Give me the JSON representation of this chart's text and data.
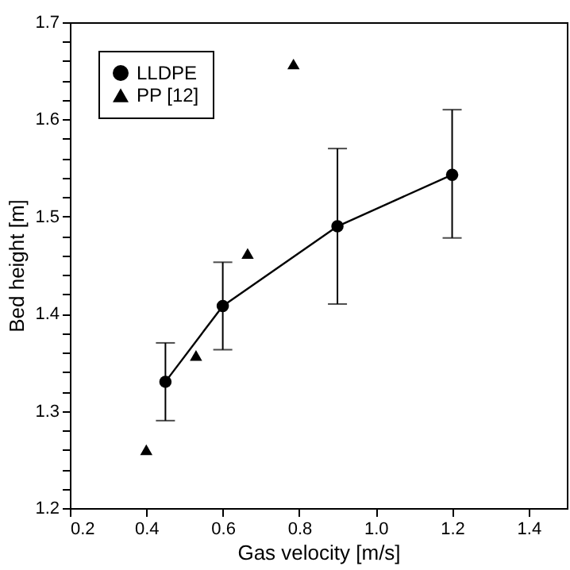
{
  "chart_data": {
    "type": "line",
    "xlabel": "Gas velocity [m/s]",
    "ylabel": "Bed height [m]",
    "xlim": [
      0.2,
      1.5
    ],
    "xticks": [
      {
        "value": 0.2,
        "label": "0.2"
      },
      {
        "value": 0.4,
        "label": "0.4"
      },
      {
        "value": 0.6,
        "label": "0.6"
      },
      {
        "value": 0.8,
        "label": "0.8"
      },
      {
        "value": 1.0,
        "label": "1.0"
      },
      {
        "value": 1.2,
        "label": "1.2"
      },
      {
        "value": 1.4,
        "label": "1.4"
      }
    ],
    "ylim": [
      1.2,
      1.7
    ],
    "yticks": [
      {
        "value": 1.2,
        "label": "1.2"
      },
      {
        "value": 1.22,
        "label": null
      },
      {
        "value": 1.24,
        "label": null
      },
      {
        "value": 1.26,
        "label": null
      },
      {
        "value": 1.28,
        "label": null
      },
      {
        "value": 1.3,
        "label": "1.3"
      },
      {
        "value": 1.32,
        "label": null
      },
      {
        "value": 1.34,
        "label": null
      },
      {
        "value": 1.36,
        "label": null
      },
      {
        "value": 1.38,
        "label": null
      },
      {
        "value": 1.4,
        "label": "1.4"
      },
      {
        "value": 1.42,
        "label": null
      },
      {
        "value": 1.44,
        "label": null
      },
      {
        "value": 1.46,
        "label": null
      },
      {
        "value": 1.48,
        "label": null
      },
      {
        "value": 1.5,
        "label": "1.5"
      },
      {
        "value": 1.52,
        "label": null
      },
      {
        "value": 1.54,
        "label": null
      },
      {
        "value": 1.56,
        "label": null
      },
      {
        "value": 1.58,
        "label": null
      },
      {
        "value": 1.6,
        "label": "1.6"
      },
      {
        "value": 1.62,
        "label": null
      },
      {
        "value": 1.64,
        "label": null
      },
      {
        "value": 1.66,
        "label": null
      },
      {
        "value": 1.68,
        "label": null
      },
      {
        "value": 1.7,
        "label": "1.7"
      }
    ],
    "grid": false,
    "legend": "top left",
    "series": [
      {
        "name": "LLDPE",
        "marker": "circle",
        "color": "#000000",
        "x": [
          0.45,
          0.6,
          0.9,
          1.2
        ],
        "values": [
          1.33,
          1.408,
          1.49,
          1.543
        ],
        "errors": [
          [
            1.29,
            1.37
          ],
          [
            1.363,
            1.453
          ],
          [
            1.41,
            1.57
          ],
          [
            1.478,
            1.61
          ]
        ]
      },
      {
        "name": "PP [12]",
        "type": "scatter",
        "marker": "triangle",
        "color": "#000000",
        "x": [
          0.4,
          0.53,
          0.665,
          0.785
        ],
        "values": [
          1.26,
          1.357,
          1.462,
          1.657
        ]
      }
    ]
  }
}
